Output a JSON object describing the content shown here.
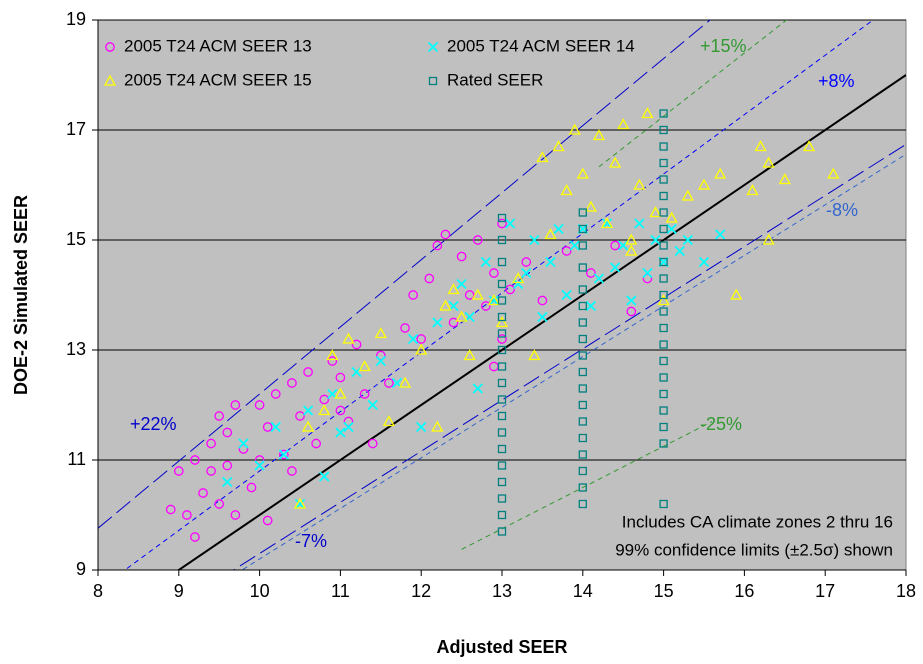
{
  "chart_data": {
    "type": "scatter",
    "x_label": "Adjusted SEER",
    "y_label": "DOE-2 Simulated SEER",
    "xlim": [
      8,
      18
    ],
    "ylim": [
      9,
      19
    ],
    "xticks": [
      8,
      9,
      10,
      11,
      12,
      13,
      14,
      15,
      16,
      17,
      18
    ],
    "yticks": [
      9,
      11,
      13,
      15,
      17,
      19
    ],
    "grid": true,
    "legend": "upper left",
    "series": [
      {
        "name": "2005 T24 ACM SEER 13",
        "color": "#ff00ff",
        "marker": "circle",
        "x": [
          8.9,
          9.0,
          9.1,
          9.2,
          9.2,
          9.3,
          9.4,
          9.4,
          9.5,
          9.5,
          9.6,
          9.6,
          9.7,
          9.7,
          9.8,
          9.9,
          10.0,
          10.0,
          10.1,
          10.1,
          10.2,
          10.3,
          10.4,
          10.5,
          10.6,
          10.7,
          10.8,
          10.9,
          11.0,
          11.0,
          11.1,
          11.2,
          11.3,
          11.5,
          11.6,
          11.8,
          11.9,
          12.0,
          12.1,
          12.2,
          12.3,
          12.4,
          12.5,
          12.6,
          12.7,
          12.8,
          12.9,
          13.0,
          13.0,
          13.1,
          13.3,
          13.5,
          13.8,
          14.1,
          14.4,
          14.6,
          14.8,
          12.9,
          11.4,
          10.4
        ],
        "values": [
          10.1,
          10.8,
          10.0,
          11.0,
          9.6,
          10.4,
          10.8,
          11.3,
          10.2,
          11.8,
          10.9,
          11.5,
          12.0,
          10.0,
          11.2,
          10.5,
          11.0,
          12.0,
          9.9,
          11.6,
          12.2,
          11.1,
          12.4,
          11.8,
          12.6,
          11.3,
          12.1,
          12.8,
          11.9,
          12.5,
          11.7,
          13.1,
          12.2,
          12.9,
          12.4,
          13.4,
          14.0,
          13.2,
          14.3,
          14.9,
          15.1,
          13.5,
          14.7,
          14.0,
          15.0,
          13.8,
          14.4,
          15.3,
          13.2,
          14.1,
          14.6,
          13.9,
          14.8,
          14.4,
          14.9,
          13.7,
          14.3,
          12.7,
          11.3,
          10.8
        ]
      },
      {
        "name": "2005 T24 ACM SEER 14",
        "color": "#00ffff",
        "marker": "x",
        "x": [
          9.6,
          9.8,
          10.0,
          10.2,
          10.3,
          10.5,
          10.6,
          10.8,
          10.9,
          11.0,
          11.2,
          11.4,
          11.5,
          11.7,
          11.9,
          12.0,
          12.2,
          12.4,
          12.5,
          12.6,
          12.8,
          12.9,
          13.1,
          13.2,
          13.4,
          13.5,
          13.6,
          13.7,
          13.8,
          13.9,
          14.0,
          14.1,
          14.2,
          14.3,
          14.4,
          14.5,
          14.6,
          14.7,
          14.8,
          14.9,
          15.0,
          15.1,
          15.2,
          15.3,
          15.5,
          15.7,
          12.7,
          11.1,
          13.3
        ],
        "values": [
          10.6,
          11.3,
          10.9,
          11.6,
          11.1,
          10.2,
          11.9,
          10.7,
          12.2,
          11.5,
          12.6,
          12.0,
          12.8,
          12.4,
          13.2,
          11.6,
          13.5,
          13.8,
          14.2,
          13.6,
          14.6,
          13.9,
          15.3,
          14.2,
          15.0,
          13.6,
          14.6,
          15.2,
          14.0,
          14.9,
          15.2,
          13.8,
          14.3,
          15.3,
          14.5,
          14.9,
          13.9,
          15.3,
          14.4,
          15.0,
          14.6,
          15.2,
          14.8,
          15.0,
          14.6,
          15.1,
          12.3,
          11.6,
          14.4
        ]
      },
      {
        "name": "2005 T24 ACM SEER 15",
        "color": "#ffff00",
        "marker": "triangle",
        "x": [
          10.5,
          10.6,
          10.8,
          10.9,
          11.0,
          11.1,
          11.3,
          11.5,
          11.6,
          11.8,
          12.0,
          12.2,
          12.3,
          12.4,
          12.5,
          12.6,
          12.7,
          12.9,
          13.2,
          13.4,
          13.5,
          13.6,
          13.7,
          13.8,
          13.9,
          14.0,
          14.1,
          14.2,
          14.3,
          14.4,
          14.5,
          14.6,
          14.7,
          14.8,
          14.9,
          15.0,
          15.1,
          15.3,
          15.5,
          15.7,
          16.1,
          16.2,
          16.3,
          16.3,
          16.5,
          16.8,
          17.1,
          15.9,
          14.6,
          13.0
        ],
        "values": [
          10.2,
          11.6,
          11.9,
          12.9,
          12.2,
          13.2,
          12.7,
          13.3,
          11.7,
          12.4,
          13.0,
          11.6,
          13.8,
          14.1,
          13.6,
          12.9,
          14.0,
          13.9,
          14.3,
          12.9,
          16.5,
          15.1,
          16.7,
          15.9,
          17.0,
          16.2,
          15.6,
          16.9,
          15.3,
          16.4,
          17.1,
          15.0,
          16.0,
          17.3,
          15.5,
          13.9,
          15.4,
          15.8,
          16.0,
          16.2,
          15.9,
          16.7,
          16.4,
          15.0,
          16.1,
          16.7,
          16.2,
          14.0,
          14.8,
          13.5
        ]
      },
      {
        "name": "Rated SEER",
        "color": "#008080",
        "marker": "square",
        "x": [
          13,
          13,
          13,
          13,
          13,
          13,
          13,
          13,
          13,
          13,
          13,
          13,
          13,
          13,
          13,
          13,
          13,
          13,
          13,
          14,
          14,
          14,
          14,
          14,
          14,
          14,
          14,
          14,
          14,
          14,
          14,
          14,
          14,
          14,
          14,
          14,
          14,
          15,
          15,
          15,
          15,
          15,
          15,
          15,
          15,
          15,
          15,
          15,
          15,
          15,
          15,
          15,
          15,
          15,
          15,
          15,
          15,
          15,
          15
        ],
        "values": [
          9.7,
          10.0,
          10.3,
          10.6,
          10.9,
          11.2,
          11.5,
          11.8,
          12.1,
          12.4,
          12.7,
          13.0,
          13.3,
          13.6,
          13.9,
          14.2,
          14.6,
          15.0,
          15.4,
          10.2,
          10.5,
          10.8,
          11.1,
          11.4,
          11.7,
          12.0,
          12.3,
          12.6,
          12.9,
          13.2,
          13.5,
          13.8,
          14.1,
          14.5,
          14.9,
          15.2,
          15.5,
          10.2,
          11.3,
          11.6,
          11.9,
          12.2,
          12.5,
          12.8,
          13.1,
          13.4,
          13.7,
          14.0,
          14.3,
          14.6,
          14.9,
          15.2,
          15.5,
          15.8,
          16.1,
          16.4,
          16.7,
          17.0,
          17.3
        ]
      }
    ],
    "reference_lines": [
      {
        "label": "+22%",
        "slope": 1.22,
        "color": "#0000cc",
        "dash": "long",
        "x_range": [
          8,
          18
        ]
      },
      {
        "label": "-7%",
        "slope": 0.93,
        "color": "#0000cc",
        "dash": "long",
        "x_range": [
          8,
          18
        ]
      },
      {
        "label": "+15%",
        "slope": 1.15,
        "color": "#339933",
        "dash": "short",
        "x_range": [
          14.2,
          16.6
        ]
      },
      {
        "label": "+8%",
        "slope": 1.08,
        "color": "#0000ff",
        "dash": "short",
        "x_range": [
          8,
          18
        ]
      },
      {
        "label": "-8%",
        "slope": 0.92,
        "color": "#3366cc",
        "dash": "short",
        "x_range": [
          8,
          18
        ]
      },
      {
        "label": "-25%",
        "slope": 0.75,
        "color": "#339933",
        "dash": "short",
        "x_range": [
          12.5,
          15.6
        ]
      }
    ],
    "identity_line": {
      "slope": 1,
      "color": "#000000"
    },
    "notes": [
      "Includes CA climate zones 2 thru 16",
      "99% confidence limits (±2.5σ) shown"
    ]
  }
}
